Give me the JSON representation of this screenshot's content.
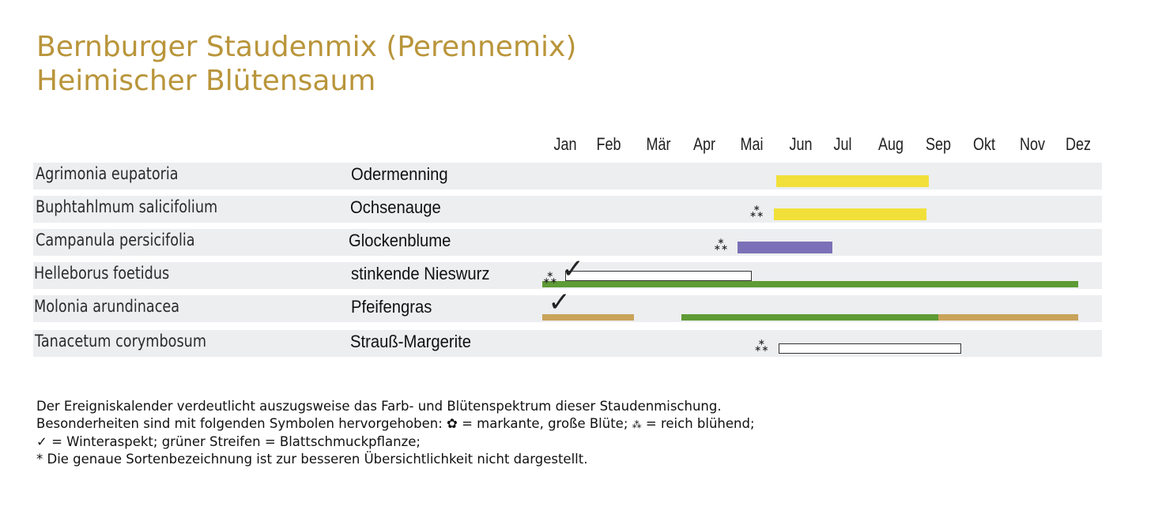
{
  "title": {
    "line1": "Bernburger Staudenmix (Perennemix)",
    "line2": "Heimischer Blütensaum"
  },
  "colors": {
    "title": "#b9953b",
    "yellow": "#f1e03a",
    "purple": "#7b70b7",
    "green": "#5e9a35",
    "tan": "#c9a35a",
    "row_bg": "#eceef0"
  },
  "chart_data": {
    "type": "timeline",
    "months": [
      "Jan",
      "Feb",
      "Mär",
      "Apr",
      "Mai",
      "Jun",
      "Jul",
      "Aug",
      "Sep",
      "Okt",
      "Nov",
      "Dez"
    ],
    "rows": [
      {
        "latin": "Agrimonia eupatoria",
        "common": "Odermenning",
        "bars": [
          {
            "kind": "bloom",
            "color": "yellow",
            "start": 6.0,
            "end": 9.3
          }
        ],
        "symbols": []
      },
      {
        "latin": "Buphtahlmum salicifolium",
        "common": "Ochsenauge",
        "bars": [
          {
            "kind": "bloom",
            "color": "yellow",
            "start": 5.95,
            "end": 9.25
          }
        ],
        "symbols": [
          {
            "type": "reich-bluehend",
            "at": 5.6
          }
        ]
      },
      {
        "latin": "Campanula persicifolia",
        "common": "Glockenblume",
        "bars": [
          {
            "kind": "bloom",
            "color": "purple",
            "start": 5.2,
            "end": 7.25
          }
        ],
        "symbols": [
          {
            "type": "reich-bluehend",
            "at": 4.85
          }
        ]
      },
      {
        "latin": "Helleborus foetidus",
        "common": "stinkende Nieswurz",
        "bars": [
          {
            "kind": "bloom",
            "color": "white",
            "start": 1.5,
            "end": 5.5
          },
          {
            "kind": "leaf",
            "color": "green",
            "start": 1.0,
            "end": 12.5
          }
        ],
        "symbols": [
          {
            "type": "reich-bluehend",
            "at": 1.17
          },
          {
            "type": "winteraspekt",
            "at": 1.6
          }
        ]
      },
      {
        "latin": "Molonia arundinacea",
        "common": "Pfeifengras",
        "bars": [
          {
            "kind": "leaf",
            "color": "tan",
            "start": 1.0,
            "end": 3.0
          },
          {
            "kind": "leaf",
            "color": "green",
            "start": 4.0,
            "end": 9.5
          },
          {
            "kind": "leaf",
            "color": "tan",
            "start": 9.5,
            "end": 12.5
          }
        ],
        "symbols": [
          {
            "type": "winteraspekt",
            "at": 1.3
          }
        ]
      },
      {
        "latin": "Tanacetum corymbosum",
        "common": "Strauß-Margerite",
        "bars": [
          {
            "kind": "bloom",
            "color": "white",
            "start": 6.05,
            "end": 10.0
          }
        ],
        "symbols": [
          {
            "type": "reich-bluehend",
            "at": 5.7
          }
        ]
      }
    ]
  },
  "footnote": {
    "line1": "Der Ereigniskalender verdeutlicht auszugsweise das Farb- und Blütenspektrum dieser Staudenmischung.",
    "line2_a": "Besonderheiten sind mit folgenden Symbolen hervorgehoben:",
    "line2_b": "= markante, große Blüte;",
    "line2_c": "= reich blühend;",
    "line3": "= Winteraspekt; grüner Streifen = Blattschmuckpflanze;",
    "line4": "* Die genaue Sortenbezeichnung ist zur besseren Übersichtlichkeit nicht dargestellt."
  }
}
